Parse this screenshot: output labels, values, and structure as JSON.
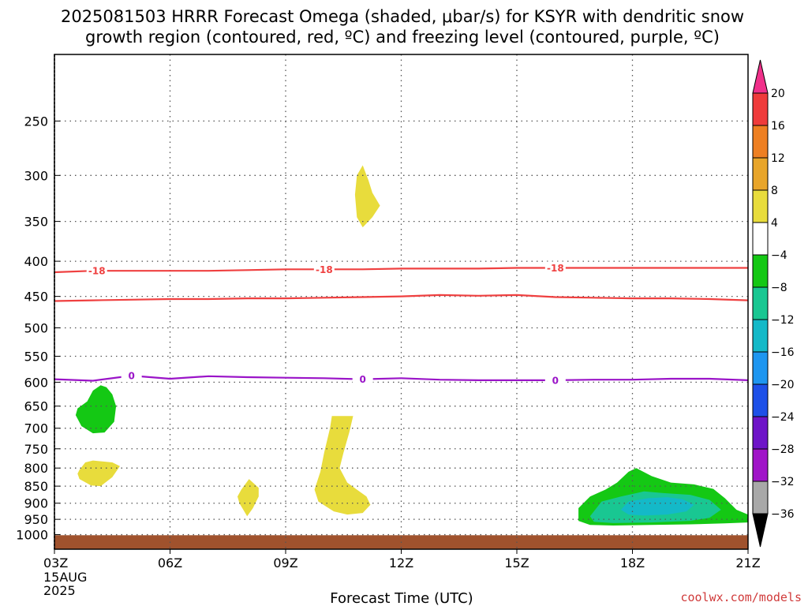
{
  "chart_data": {
    "type": "heatmap",
    "title_lines": [
      "2025081503 HRRR Forecast Omega (shaded, μbar/s) for KSYR with dendritic snow",
      "growth region (contoured, red, ºC) and freezing level (contoured, purple, ºC)"
    ],
    "xlabel": "Forecast Time (UTC)",
    "xlim": [
      3,
      21
    ],
    "x_ticks": [
      {
        "value": 3,
        "label": "03Z",
        "sublabels": [
          "15AUG",
          "2025"
        ]
      },
      {
        "value": 6,
        "label": "06Z"
      },
      {
        "value": 9,
        "label": "09Z"
      },
      {
        "value": 12,
        "label": "12Z"
      },
      {
        "value": 15,
        "label": "15Z"
      },
      {
        "value": 18,
        "label": "18Z"
      },
      {
        "value": 21,
        "label": "21Z"
      }
    ],
    "y_scale": "log",
    "ylim": [
      1050,
      200
    ],
    "y_ticks": [
      250,
      300,
      350,
      400,
      450,
      500,
      550,
      600,
      650,
      700,
      750,
      800,
      850,
      900,
      950,
      1000
    ],
    "grid": true,
    "credit": "coolwx.com/models",
    "ground_color": "#a0522d",
    "colorbar": {
      "levels": [
        20,
        16,
        12,
        8,
        4,
        -4,
        -8,
        -12,
        -16,
        -20,
        -24,
        -28,
        -32,
        -36
      ],
      "colors": [
        "#f0308a",
        "#ef3b3b",
        "#ee7f22",
        "#e8a52a",
        "#e8dc3c",
        "#ffffff",
        "#14c814",
        "#19c792",
        "#14b9c8",
        "#1e96f0",
        "#1e50e8",
        "#6e14c8",
        "#a014c8",
        "#a8a8a8",
        "#000000"
      ]
    },
    "contours": [
      {
        "name": "dendritic growth -18",
        "color": "#ef4040",
        "label": "-18",
        "x": [
          3,
          4,
          5,
          6,
          7,
          8,
          9,
          10,
          11,
          12,
          13,
          14,
          15,
          16,
          17,
          18,
          19,
          20,
          21
        ],
        "y": [
          415,
          413,
          413,
          413,
          413,
          412,
          411,
          411,
          411,
          410,
          410,
          410,
          409,
          409,
          409,
          409,
          409,
          409,
          409
        ],
        "label_x": [
          4.1,
          10.0,
          16.0
        ]
      },
      {
        "name": "dendritic growth -12",
        "color": "#ef4040",
        "label": "",
        "x": [
          3,
          4,
          5,
          6,
          7,
          8,
          9,
          10,
          11,
          12,
          13,
          14,
          15,
          16,
          17,
          18,
          19,
          20,
          21
        ],
        "y": [
          457,
          456,
          455,
          454,
          454,
          453,
          453,
          452,
          451,
          450,
          448,
          449,
          448,
          451,
          452,
          453,
          453,
          454,
          456
        ],
        "label_x": []
      },
      {
        "name": "freezing level 0",
        "color": "#9a14c8",
        "label": "0",
        "x": [
          3,
          4,
          5,
          6,
          7,
          8,
          9,
          10,
          11,
          12,
          13,
          14,
          15,
          16,
          17,
          18,
          19,
          20,
          21
        ],
        "y": [
          594,
          597,
          587,
          593,
          588,
          590,
          591,
          592,
          594,
          592,
          595,
          596,
          596,
          596,
          595,
          595,
          593,
          593,
          596
        ],
        "label_x": [
          5.0,
          11.0,
          16.0
        ]
      }
    ],
    "shaded_regions": [
      {
        "name": "omega-green-1",
        "value": -6,
        "color": "#14c814",
        "points": [
          [
            3.85,
            640
          ],
          [
            4.0,
            617
          ],
          [
            4.2,
            606
          ],
          [
            4.35,
            610
          ],
          [
            4.5,
            625
          ],
          [
            4.6,
            650
          ],
          [
            4.55,
            685
          ],
          [
            4.3,
            710
          ],
          [
            4.0,
            712
          ],
          [
            3.7,
            695
          ],
          [
            3.55,
            670
          ],
          [
            3.6,
            655
          ]
        ]
      },
      {
        "name": "omega-yellow-1",
        "value": 5,
        "color": "#e8dc3c",
        "points": [
          [
            3.65,
            805
          ],
          [
            3.8,
            785
          ],
          [
            4.0,
            780
          ],
          [
            4.5,
            785
          ],
          [
            4.7,
            795
          ],
          [
            4.5,
            825
          ],
          [
            4.2,
            850
          ],
          [
            3.95,
            848
          ],
          [
            3.65,
            830
          ],
          [
            3.6,
            815
          ]
        ]
      },
      {
        "name": "omega-yellow-2",
        "value": 5,
        "color": "#e8dc3c",
        "points": [
          [
            10.85,
            300
          ],
          [
            11.0,
            290
          ],
          [
            11.15,
            305
          ],
          [
            11.25,
            318
          ],
          [
            11.45,
            332
          ],
          [
            11.25,
            345
          ],
          [
            11.0,
            357
          ],
          [
            10.85,
            345
          ],
          [
            10.8,
            320
          ]
        ]
      },
      {
        "name": "omega-yellow-3",
        "value": 5,
        "color": "#e8dc3c",
        "points": [
          [
            7.85,
            860
          ],
          [
            8.05,
            830
          ],
          [
            8.3,
            855
          ],
          [
            8.3,
            880
          ],
          [
            8.15,
            915
          ],
          [
            8.0,
            940
          ],
          [
            7.8,
            900
          ],
          [
            7.75,
            880
          ]
        ]
      },
      {
        "name": "omega-yellow-4",
        "value": 5,
        "color": "#e8dc3c",
        "points": [
          [
            10.15,
            700
          ],
          [
            10.2,
            672
          ],
          [
            10.75,
            672
          ],
          [
            10.65,
            710
          ],
          [
            10.5,
            760
          ],
          [
            10.4,
            800
          ],
          [
            10.6,
            840
          ],
          [
            10.85,
            860
          ],
          [
            11.1,
            880
          ],
          [
            11.2,
            905
          ],
          [
            11.0,
            930
          ],
          [
            10.6,
            935
          ],
          [
            10.25,
            925
          ],
          [
            9.85,
            895
          ],
          [
            9.75,
            860
          ],
          [
            9.9,
            810
          ],
          [
            10.0,
            760
          ]
        ]
      },
      {
        "name": "omega-green-2",
        "value": -6,
        "color": "#14c814",
        "points": [
          [
            16.6,
            915
          ],
          [
            16.9,
            880
          ],
          [
            17.3,
            860
          ],
          [
            17.6,
            840
          ],
          [
            17.9,
            810
          ],
          [
            18.1,
            800
          ],
          [
            18.5,
            822
          ],
          [
            19.0,
            840
          ],
          [
            19.6,
            845
          ],
          [
            20.1,
            858
          ],
          [
            20.4,
            885
          ],
          [
            20.7,
            920
          ],
          [
            21.0,
            935
          ],
          [
            21.0,
            960
          ],
          [
            20.4,
            963
          ],
          [
            19.5,
            966
          ],
          [
            18.5,
            968
          ],
          [
            17.5,
            970
          ],
          [
            16.9,
            968
          ],
          [
            16.6,
            955
          ]
        ]
      },
      {
        "name": "omega-teal-1",
        "value": -10,
        "color": "#19c792",
        "points": [
          [
            16.9,
            940
          ],
          [
            17.2,
            895
          ],
          [
            17.7,
            880
          ],
          [
            18.3,
            865
          ],
          [
            18.8,
            870
          ],
          [
            19.5,
            875
          ],
          [
            20.0,
            890
          ],
          [
            20.3,
            920
          ],
          [
            20.0,
            945
          ],
          [
            19.5,
            955
          ],
          [
            18.5,
            960
          ],
          [
            17.5,
            962
          ],
          [
            17.0,
            958
          ]
        ]
      },
      {
        "name": "omega-cyan-1",
        "value": -14,
        "color": "#14b9c8",
        "points": [
          [
            17.7,
            920
          ],
          [
            17.9,
            895
          ],
          [
            18.4,
            885
          ],
          [
            18.9,
            882
          ],
          [
            19.3,
            888
          ],
          [
            19.6,
            905
          ],
          [
            19.4,
            925
          ],
          [
            18.9,
            935
          ],
          [
            18.3,
            938
          ],
          [
            17.9,
            935
          ]
        ]
      }
    ]
  }
}
